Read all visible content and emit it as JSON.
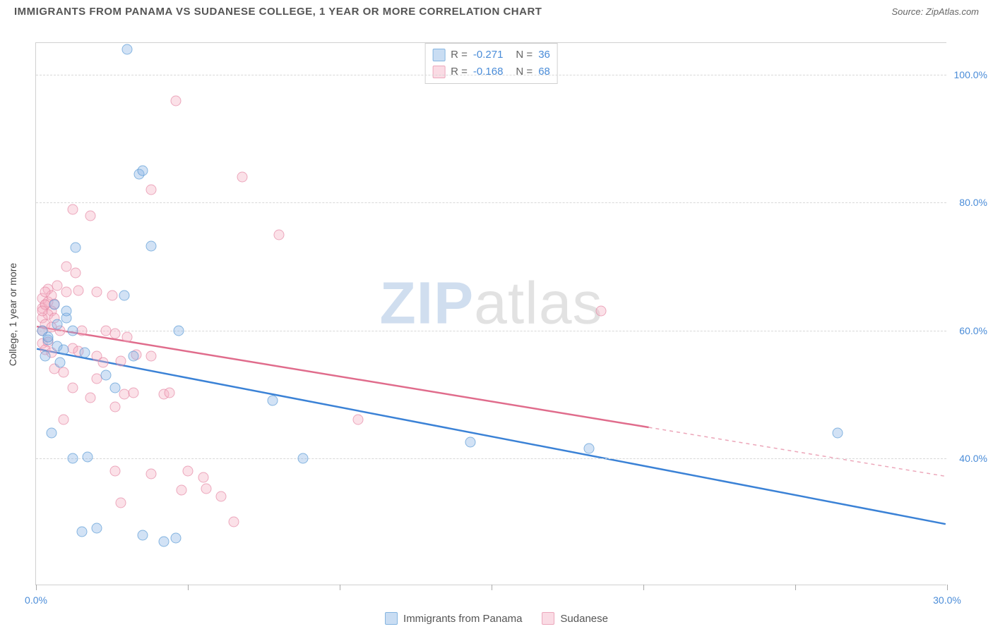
{
  "header": {
    "title": "IMMIGRANTS FROM PANAMA VS SUDANESE COLLEGE, 1 YEAR OR MORE CORRELATION CHART",
    "source": "Source: ZipAtlas.com"
  },
  "watermark": {
    "part1": "ZIP",
    "part2": "atlas"
  },
  "axes": {
    "ylabel": "College, 1 year or more",
    "xlim": [
      0,
      30
    ],
    "ylim": [
      20,
      105
    ],
    "yticks": [
      {
        "v": 40,
        "label": "40.0%"
      },
      {
        "v": 60,
        "label": "60.0%"
      },
      {
        "v": 80,
        "label": "80.0%"
      },
      {
        "v": 100,
        "label": "100.0%"
      }
    ],
    "xticks": [
      {
        "v": 0,
        "label": "0.0%"
      },
      {
        "v": 5,
        "label": ""
      },
      {
        "v": 10,
        "label": ""
      },
      {
        "v": 15,
        "label": ""
      },
      {
        "v": 20,
        "label": ""
      },
      {
        "v": 25,
        "label": ""
      },
      {
        "v": 30,
        "label": "30.0%"
      }
    ]
  },
  "series": [
    {
      "id": "s1",
      "name": "Immigrants from Panama",
      "color_fill": "rgba(135,180,230,0.5)",
      "color_stroke": "#5c9bd6",
      "trend_color": "#3b82d6",
      "R": "-0.271",
      "N": "36",
      "trend": {
        "x1": 0,
        "y1": 57,
        "x2": 30,
        "y2": 29.5,
        "solid_until_x": 30
      },
      "points": [
        [
          3.0,
          104
        ],
        [
          1.3,
          73
        ],
        [
          3.8,
          73.2
        ],
        [
          0.7,
          61
        ],
        [
          1.2,
          60
        ],
        [
          4.7,
          60
        ],
        [
          0.4,
          58.5
        ],
        [
          0.7,
          57.5
        ],
        [
          0.9,
          57
        ],
        [
          1.6,
          56.5
        ],
        [
          3.2,
          56
        ],
        [
          2.3,
          53
        ],
        [
          2.6,
          51
        ],
        [
          0.5,
          44
        ],
        [
          14.3,
          42.5
        ],
        [
          18.2,
          41.5
        ],
        [
          26.4,
          44
        ],
        [
          7.8,
          49
        ],
        [
          8.8,
          40
        ],
        [
          1.2,
          40
        ],
        [
          1.7,
          40.2
        ],
        [
          1.5,
          28.5
        ],
        [
          2.0,
          29
        ],
        [
          3.5,
          28
        ],
        [
          4.2,
          27
        ],
        [
          4.6,
          27.5
        ],
        [
          3.4,
          84.5
        ],
        [
          3.5,
          85
        ],
        [
          2.9,
          65.5
        ],
        [
          0.2,
          60
        ],
        [
          0.4,
          59
        ],
        [
          1.0,
          62
        ],
        [
          0.3,
          56
        ],
        [
          0.8,
          55
        ],
        [
          1.0,
          63
        ],
        [
          0.6,
          64
        ]
      ]
    },
    {
      "id": "s2",
      "name": "Sudanese",
      "color_fill": "rgba(245,175,195,0.5)",
      "color_stroke": "#e68aa6",
      "trend_color": "#e06c8c",
      "R": "-0.168",
      "N": "68",
      "trend": {
        "x1": 0,
        "y1": 60.5,
        "x2": 30,
        "y2": 37,
        "solid_until_x": 20.2
      },
      "points": [
        [
          4.6,
          96
        ],
        [
          3.8,
          82
        ],
        [
          6.8,
          84
        ],
        [
          8.0,
          75
        ],
        [
          1.2,
          79
        ],
        [
          1.8,
          78
        ],
        [
          1.0,
          70
        ],
        [
          1.3,
          69
        ],
        [
          0.7,
          67
        ],
        [
          0.4,
          66.5
        ],
        [
          1.0,
          66
        ],
        [
          1.4,
          66.2
        ],
        [
          2.0,
          66
        ],
        [
          2.5,
          65.5
        ],
        [
          0.3,
          64
        ],
        [
          0.2,
          63.5
        ],
        [
          0.5,
          63
        ],
        [
          0.4,
          62.5
        ],
        [
          0.2,
          62
        ],
        [
          0.3,
          61
        ],
        [
          0.5,
          60.5
        ],
        [
          0.8,
          60
        ],
        [
          0.2,
          60
        ],
        [
          1.5,
          60
        ],
        [
          2.3,
          60
        ],
        [
          2.6,
          59.5
        ],
        [
          3.0,
          59
        ],
        [
          0.2,
          58
        ],
        [
          0.4,
          58.2
        ],
        [
          0.3,
          57
        ],
        [
          0.5,
          56.5
        ],
        [
          1.2,
          57.2
        ],
        [
          1.4,
          56.8
        ],
        [
          2.0,
          56
        ],
        [
          3.3,
          56.2
        ],
        [
          3.8,
          56
        ],
        [
          0.6,
          54
        ],
        [
          0.9,
          53.5
        ],
        [
          2.0,
          52.5
        ],
        [
          2.2,
          55
        ],
        [
          2.8,
          55.2
        ],
        [
          1.2,
          51
        ],
        [
          1.8,
          49.5
        ],
        [
          2.9,
          50
        ],
        [
          3.2,
          50.2
        ],
        [
          2.6,
          48
        ],
        [
          0.9,
          46
        ],
        [
          4.2,
          50
        ],
        [
          4.4,
          50.2
        ],
        [
          10.6,
          46
        ],
        [
          2.6,
          38
        ],
        [
          3.8,
          37.5
        ],
        [
          5.0,
          38
        ],
        [
          5.5,
          37
        ],
        [
          4.8,
          35
        ],
        [
          5.6,
          35.2
        ],
        [
          6.1,
          34
        ],
        [
          2.8,
          33
        ],
        [
          6.5,
          30
        ],
        [
          18.6,
          63
        ],
        [
          0.2,
          65
        ],
        [
          0.4,
          64.5
        ],
        [
          0.3,
          64
        ],
        [
          0.6,
          64.2
        ],
        [
          0.2,
          63
        ],
        [
          0.5,
          65.5
        ],
        [
          0.3,
          66
        ],
        [
          0.6,
          62
        ]
      ]
    }
  ],
  "stats_legend": {
    "rows": [
      {
        "series": "s1",
        "r_label": "R = ",
        "r_val": "-0.271",
        "n_label": "N = ",
        "n_val": "36"
      },
      {
        "series": "s2",
        "r_label": "R = ",
        "r_val": "-0.168",
        "n_label": "N = ",
        "n_val": "68"
      }
    ]
  },
  "bottom_legend": [
    {
      "series": "s1",
      "label": "Immigrants from Panama"
    },
    {
      "series": "s2",
      "label": "Sudanese"
    }
  ]
}
